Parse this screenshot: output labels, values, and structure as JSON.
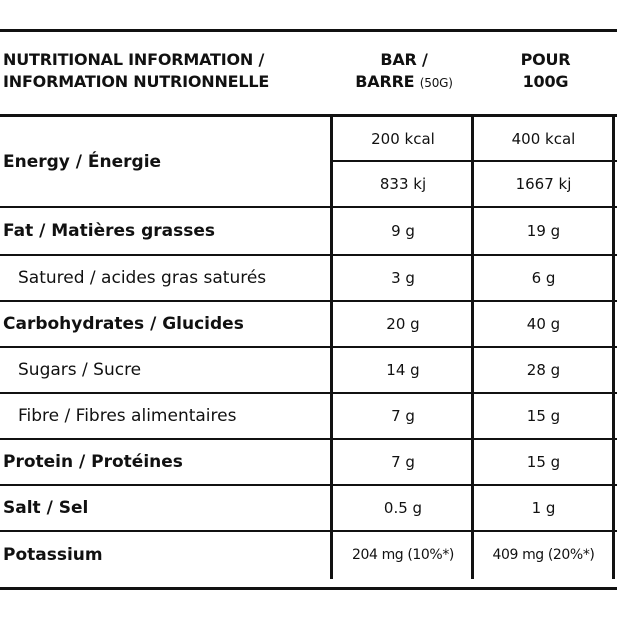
{
  "header": {
    "col1_line1": "NUTRITIONAL INFORMATION /",
    "col1_line2": "INFORMATION NUTRIONNELLE",
    "col2_line1": "BAR /",
    "col2_line2": "BARRE",
    "col2_unit": "(50G)",
    "col3_line1": "POUR",
    "col3_line2": "100G"
  },
  "rows": [
    {
      "label": "Energy / Énergie",
      "bar": "200 kcal",
      "per100": "400 kcal",
      "bar2": "833 kj",
      "per100_2": "1667 kj"
    },
    {
      "label": "Fat / Matières grasses",
      "bar": "9 g",
      "per100": "19 g"
    },
    {
      "label": "Satured / acides gras saturés",
      "bar": "3 g",
      "per100": "6 g"
    },
    {
      "label": "Carbohydrates / Glucides",
      "bar": "20 g",
      "per100": "40 g"
    },
    {
      "label": "Sugars / Sucre",
      "bar": "14 g",
      "per100": "28 g"
    },
    {
      "label": "Fibre / Fibres alimentaires",
      "bar": "7 g",
      "per100": "15 g"
    },
    {
      "label": "Protein / Protéines",
      "bar": "7 g",
      "per100": "15 g"
    },
    {
      "label": "Salt / Sel",
      "bar": "0.5 g",
      "per100": "1 g"
    },
    {
      "label": "Potassium",
      "bar": "204 mg (10%*)",
      "per100": "409 mg (20%*)"
    }
  ]
}
